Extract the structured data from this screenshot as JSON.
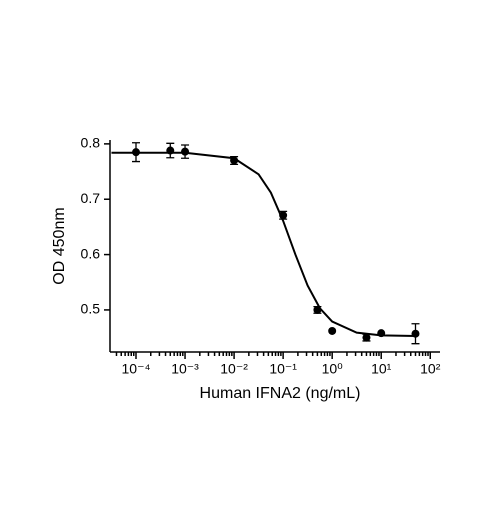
{
  "chart_data": {
    "type": "scatter",
    "y_label": "OD 450nm",
    "x_label": "Human IFNA2 (ng/mL)",
    "x": [
      0.0001,
      0.0005,
      0.001,
      0.01,
      0.1,
      0.5,
      1,
      5,
      10,
      50
    ],
    "values": [
      0.785,
      0.788,
      0.786,
      0.77,
      0.671,
      0.5,
      0.462,
      0.45,
      0.458,
      0.457
    ],
    "errors": [
      0.017,
      0.013,
      0.012,
      0.007,
      0.007,
      0.006,
      null,
      0.006,
      null,
      0.018
    ],
    "color": "#000000",
    "curve": {
      "x": [
        3.16e-05,
        0.001,
        0.01,
        0.0316,
        0.0562,
        0.1,
        0.178,
        0.316,
        0.562,
        1,
        3.16,
        10,
        50
      ],
      "values": [
        0.784,
        0.784,
        0.774,
        0.745,
        0.712,
        0.661,
        0.6,
        0.544,
        0.503,
        0.479,
        0.459,
        0.454,
        0.453
      ]
    },
    "xscale": "log",
    "xlim": [
      2.95e-05,
      158
    ],
    "ylim": [
      0.424,
      0.807
    ],
    "xticks": [
      {
        "value": 0.0001,
        "label": "10⁻⁴"
      },
      {
        "value": 0.001,
        "label": "10⁻³"
      },
      {
        "value": 0.01,
        "label": "10⁻²"
      },
      {
        "value": 0.1,
        "label": "10⁻¹"
      },
      {
        "value": 1,
        "label": "10⁰"
      },
      {
        "value": 10,
        "label": "10¹"
      },
      {
        "value": 100,
        "label": "10²"
      }
    ],
    "x_minor_ticks": [
      4e-05,
      5e-05,
      6e-05,
      7e-05,
      8e-05,
      9e-05,
      0.0002,
      0.0003,
      0.0004,
      0.0005,
      0.0006,
      0.0007,
      0.0008,
      0.0009,
      0.002,
      0.003,
      0.004,
      0.005,
      0.006,
      0.007,
      0.008,
      0.009,
      0.02,
      0.03,
      0.04,
      0.05,
      0.06,
      0.07,
      0.08,
      0.09,
      0.2,
      0.3,
      0.4,
      0.5,
      0.6,
      0.7,
      0.8,
      0.9,
      2,
      3,
      4,
      5,
      6,
      7,
      8,
      9,
      20,
      30,
      40,
      50,
      60,
      70,
      80,
      90
    ],
    "yticks": [
      0.5,
      0.6,
      0.7,
      0.8
    ]
  }
}
